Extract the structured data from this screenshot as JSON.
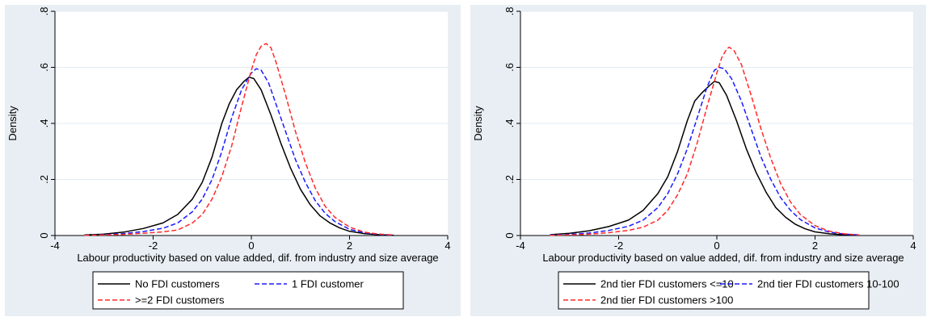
{
  "colors": {
    "outer_bg": "#e8eef3",
    "plot_bg": "#ffffff",
    "grid": "#e3eaf0",
    "black": "#000000",
    "blue": "#1a1aff",
    "red": "#ff2a2a"
  },
  "chart_data": [
    {
      "type": "line",
      "xlabel": "Labour productivity based on value added, dif. from industry and size average",
      "ylabel": "Density",
      "xlim": [
        -4,
        4
      ],
      "ylim": [
        0,
        0.8
      ],
      "x_ticks": [
        -4,
        -2,
        0,
        2,
        4
      ],
      "x_tick_labels": [
        "-4",
        "-2",
        "0",
        "2",
        "4"
      ],
      "y_ticks": [
        0,
        0.2,
        0.4,
        0.6,
        0.8
      ],
      "y_tick_labels": [
        "0",
        ".2",
        ".4",
        ".6",
        ".8"
      ],
      "grid": true,
      "legend_position": "bottom",
      "series": [
        {
          "name": "No FDI customers",
          "color": "#000000",
          "dash": "solid",
          "points": [
            [
              -3.4,
              0.002
            ],
            [
              -3.0,
              0.005
            ],
            [
              -2.6,
              0.012
            ],
            [
              -2.2,
              0.025
            ],
            [
              -1.8,
              0.045
            ],
            [
              -1.5,
              0.075
            ],
            [
              -1.2,
              0.13
            ],
            [
              -1.0,
              0.19
            ],
            [
              -0.8,
              0.28
            ],
            [
              -0.6,
              0.4
            ],
            [
              -0.45,
              0.47
            ],
            [
              -0.3,
              0.52
            ],
            [
              -0.15,
              0.55
            ],
            [
              -0.05,
              0.565
            ],
            [
              0.05,
              0.56
            ],
            [
              0.2,
              0.52
            ],
            [
              0.4,
              0.43
            ],
            [
              0.6,
              0.33
            ],
            [
              0.8,
              0.24
            ],
            [
              1.0,
              0.165
            ],
            [
              1.2,
              0.11
            ],
            [
              1.4,
              0.07
            ],
            [
              1.6,
              0.045
            ],
            [
              1.8,
              0.027
            ],
            [
              2.0,
              0.015
            ],
            [
              2.3,
              0.007
            ],
            [
              2.6,
              0.003
            ],
            [
              2.9,
              0.001
            ]
          ]
        },
        {
          "name": "1 FDI customer",
          "color": "#1a1aff",
          "dash": "dashed",
          "points": [
            [
              -3.4,
              0.001
            ],
            [
              -3.0,
              0.003
            ],
            [
              -2.6,
              0.007
            ],
            [
              -2.2,
              0.014
            ],
            [
              -1.8,
              0.026
            ],
            [
              -1.5,
              0.045
            ],
            [
              -1.2,
              0.085
            ],
            [
              -1.0,
              0.13
            ],
            [
              -0.8,
              0.2
            ],
            [
              -0.6,
              0.3
            ],
            [
              -0.4,
              0.42
            ],
            [
              -0.2,
              0.52
            ],
            [
              0.0,
              0.58
            ],
            [
              0.1,
              0.595
            ],
            [
              0.2,
              0.59
            ],
            [
              0.35,
              0.545
            ],
            [
              0.5,
              0.47
            ],
            [
              0.7,
              0.37
            ],
            [
              0.9,
              0.27
            ],
            [
              1.1,
              0.19
            ],
            [
              1.3,
              0.125
            ],
            [
              1.5,
              0.08
            ],
            [
              1.7,
              0.05
            ],
            [
              2.0,
              0.022
            ],
            [
              2.3,
              0.01
            ],
            [
              2.6,
              0.004
            ],
            [
              2.9,
              0.001
            ]
          ]
        },
        {
          "name": ">=2 FDI customers",
          "color": "#ff2a2a",
          "dash": "dashed",
          "points": [
            [
              -3.4,
              0.001
            ],
            [
              -3.0,
              0.002
            ],
            [
              -2.6,
              0.004
            ],
            [
              -2.2,
              0.008
            ],
            [
              -1.8,
              0.013
            ],
            [
              -1.5,
              0.02
            ],
            [
              -1.2,
              0.045
            ],
            [
              -1.0,
              0.075
            ],
            [
              -0.8,
              0.13
            ],
            [
              -0.6,
              0.21
            ],
            [
              -0.4,
              0.32
            ],
            [
              -0.2,
              0.46
            ],
            [
              0.0,
              0.59
            ],
            [
              0.1,
              0.645
            ],
            [
              0.2,
              0.675
            ],
            [
              0.3,
              0.685
            ],
            [
              0.4,
              0.67
            ],
            [
              0.5,
              0.62
            ],
            [
              0.7,
              0.5
            ],
            [
              0.9,
              0.37
            ],
            [
              1.1,
              0.26
            ],
            [
              1.3,
              0.17
            ],
            [
              1.5,
              0.105
            ],
            [
              1.7,
              0.065
            ],
            [
              2.0,
              0.03
            ],
            [
              2.3,
              0.012
            ],
            [
              2.6,
              0.005
            ],
            [
              2.9,
              0.002
            ]
          ]
        }
      ]
    },
    {
      "type": "line",
      "xlabel": "Labour productivity based on value added, dif. from industry and size average",
      "ylabel": "Density",
      "xlim": [
        -4,
        4
      ],
      "ylim": [
        0,
        0.8
      ],
      "x_ticks": [
        -4,
        -2,
        0,
        2,
        4
      ],
      "x_tick_labels": [
        "-4",
        "-2",
        "0",
        "2",
        "4"
      ],
      "y_ticks": [
        0,
        0.2,
        0.4,
        0.6,
        0.8
      ],
      "y_tick_labels": [
        "0",
        ".2",
        ".4",
        ".6",
        ".8"
      ],
      "grid": true,
      "legend_position": "bottom",
      "series": [
        {
          "name": "2nd tier FDI customers <=10",
          "color": "#000000",
          "dash": "solid",
          "points": [
            [
              -3.4,
              0.003
            ],
            [
              -3.0,
              0.008
            ],
            [
              -2.6,
              0.017
            ],
            [
              -2.2,
              0.032
            ],
            [
              -1.8,
              0.055
            ],
            [
              -1.5,
              0.09
            ],
            [
              -1.2,
              0.15
            ],
            [
              -1.0,
              0.21
            ],
            [
              -0.8,
              0.3
            ],
            [
              -0.6,
              0.41
            ],
            [
              -0.45,
              0.48
            ],
            [
              -0.3,
              0.51
            ],
            [
              -0.15,
              0.535
            ],
            [
              -0.05,
              0.55
            ],
            [
              0.05,
              0.545
            ],
            [
              0.2,
              0.5
            ],
            [
              0.4,
              0.41
            ],
            [
              0.6,
              0.31
            ],
            [
              0.8,
              0.225
            ],
            [
              1.0,
              0.155
            ],
            [
              1.2,
              0.1
            ],
            [
              1.4,
              0.065
            ],
            [
              1.6,
              0.04
            ],
            [
              1.8,
              0.024
            ],
            [
              2.0,
              0.013
            ],
            [
              2.3,
              0.006
            ],
            [
              2.6,
              0.002
            ],
            [
              2.9,
              0.001
            ]
          ]
        },
        {
          "name": "2nd tier FDI customers 10-100",
          "color": "#1a1aff",
          "dash": "dashed",
          "points": [
            [
              -3.4,
              0.002
            ],
            [
              -3.0,
              0.004
            ],
            [
              -2.6,
              0.009
            ],
            [
              -2.2,
              0.018
            ],
            [
              -1.8,
              0.033
            ],
            [
              -1.5,
              0.055
            ],
            [
              -1.2,
              0.1
            ],
            [
              -1.0,
              0.15
            ],
            [
              -0.8,
              0.22
            ],
            [
              -0.6,
              0.31
            ],
            [
              -0.4,
              0.42
            ],
            [
              -0.2,
              0.53
            ],
            [
              -0.05,
              0.59
            ],
            [
              0.05,
              0.6
            ],
            [
              0.15,
              0.595
            ],
            [
              0.3,
              0.56
            ],
            [
              0.5,
              0.48
            ],
            [
              0.7,
              0.38
            ],
            [
              0.9,
              0.28
            ],
            [
              1.1,
              0.2
            ],
            [
              1.3,
              0.135
            ],
            [
              1.5,
              0.09
            ],
            [
              1.7,
              0.057
            ],
            [
              2.0,
              0.027
            ],
            [
              2.3,
              0.012
            ],
            [
              2.6,
              0.005
            ],
            [
              2.9,
              0.002
            ]
          ]
        },
        {
          "name": "2nd tier FDI customers >100",
          "color": "#ff2a2a",
          "dash": "dashed",
          "points": [
            [
              -3.4,
              0.001
            ],
            [
              -3.0,
              0.002
            ],
            [
              -2.6,
              0.005
            ],
            [
              -2.2,
              0.01
            ],
            [
              -1.8,
              0.018
            ],
            [
              -1.5,
              0.03
            ],
            [
              -1.2,
              0.055
            ],
            [
              -1.0,
              0.09
            ],
            [
              -0.8,
              0.145
            ],
            [
              -0.6,
              0.22
            ],
            [
              -0.4,
              0.33
            ],
            [
              -0.2,
              0.46
            ],
            [
              0.0,
              0.58
            ],
            [
              0.1,
              0.635
            ],
            [
              0.2,
              0.665
            ],
            [
              0.25,
              0.672
            ],
            [
              0.35,
              0.66
            ],
            [
              0.5,
              0.61
            ],
            [
              0.7,
              0.5
            ],
            [
              0.9,
              0.38
            ],
            [
              1.1,
              0.275
            ],
            [
              1.3,
              0.185
            ],
            [
              1.5,
              0.12
            ],
            [
              1.7,
              0.075
            ],
            [
              2.0,
              0.035
            ],
            [
              2.3,
              0.015
            ],
            [
              2.6,
              0.006
            ],
            [
              2.9,
              0.002
            ]
          ]
        }
      ]
    }
  ]
}
